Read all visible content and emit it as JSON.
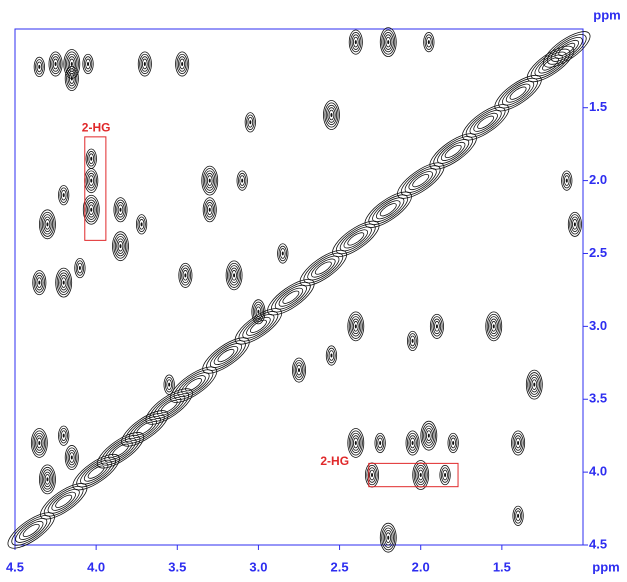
{
  "chart_data": {
    "type": "contour",
    "x_label": "ppm",
    "y_label": "ppm",
    "xlim": [
      4.5,
      1.0
    ],
    "ylim": [
      0.96,
      4.5
    ],
    "xticks": [
      4.5,
      {
        "value": 4,
        "label": "4.0"
      },
      3.5,
      {
        "value": 3,
        "label": "3.0"
      },
      2.5,
      {
        "value": 2,
        "label": "2.0"
      },
      1.5
    ],
    "yticks": [
      1.5,
      {
        "value": 2,
        "label": "2.0"
      },
      2.5,
      {
        "value": 3,
        "label": "3.0"
      },
      3.5,
      {
        "value": 4,
        "label": "4.0"
      },
      4.5
    ],
    "axis_color": "#2d2df0",
    "color": "#111111",
    "annotations": [
      {
        "text": "2-HG",
        "x": 4.0,
        "y": 1.64,
        "box": [
          4.07,
          3.94,
          1.7,
          2.41
        ],
        "color": "#e0282a"
      },
      {
        "text": "2-HG",
        "x": 2.53,
        "y": 3.93,
        "box": [
          2.32,
          1.77,
          3.94,
          4.1
        ],
        "color": "#e0282a"
      }
    ],
    "x": [
      4.03,
      4.03,
      4.03,
      4.35,
      4.25,
      4.15,
      4.05,
      4.15,
      4.3,
      4.2,
      4.35,
      4.2,
      4.1,
      3.85,
      3.85,
      3.72,
      3.3,
      3.3,
      3.1,
      3.45,
      3.15,
      2.85,
      3.47,
      2.55,
      3.05,
      3.0,
      2.4,
      2.05,
      1.9,
      1.55,
      2.55,
      2.75,
      2.4,
      2.25,
      2.05,
      1.95,
      1.8,
      2.3,
      2.0,
      1.85,
      1.4,
      1.3,
      1.1,
      1.05,
      4.35,
      4.2,
      4.15,
      4.3,
      3.55,
      2.4,
      2.2,
      1.95,
      3.7,
      2.2,
      1.4,
      4.4,
      4.2,
      4.0,
      3.85,
      3.7,
      3.55,
      3.4,
      3.2,
      3.0,
      2.8,
      2.6,
      2.4,
      2.2,
      2.0,
      1.8,
      1.6,
      1.4,
      1.2,
      1.1
    ],
    "values": [
      1.85,
      2.0,
      2.2,
      1.22,
      1.2,
      1.2,
      1.2,
      1.3,
      2.3,
      2.1,
      2.7,
      2.7,
      2.6,
      2.2,
      2.45,
      2.3,
      2.2,
      2.0,
      2.0,
      2.65,
      2.65,
      2.5,
      1.2,
      1.55,
      1.6,
      2.9,
      3.0,
      3.1,
      3.0,
      3.0,
      3.2,
      3.3,
      3.8,
      3.8,
      3.8,
      3.75,
      3.8,
      4.02,
      4.02,
      4.02,
      3.8,
      3.4,
      2.0,
      2.3,
      3.8,
      3.75,
      3.9,
      4.05,
      3.4,
      1.05,
      1.05,
      1.05,
      1.2,
      4.45,
      4.3,
      4.4,
      4.2,
      4.0,
      3.85,
      3.7,
      3.55,
      3.4,
      3.2,
      3.0,
      2.8,
      2.6,
      2.4,
      2.2,
      2.0,
      1.8,
      1.6,
      1.4,
      1.2,
      1.1
    ]
  }
}
